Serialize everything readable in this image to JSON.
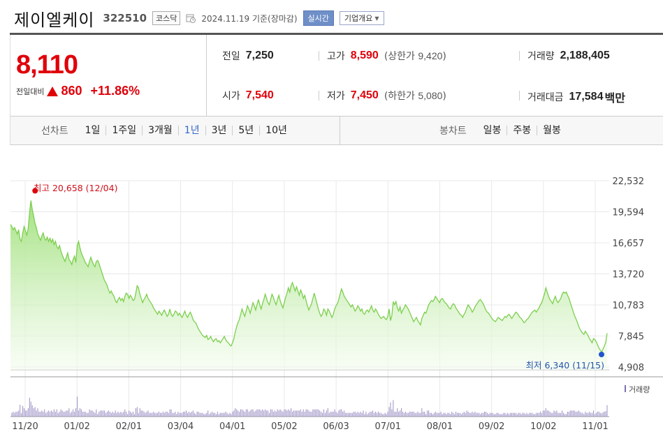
{
  "header": {
    "name": "제이엘케이",
    "code": "322510",
    "market": "코스닥",
    "date": "2024.11.19",
    "basis": "기준(장마감)",
    "realtime_label": "실시간",
    "company_label": "기업개요"
  },
  "price": {
    "current": "8,110",
    "change_label": "전일대비",
    "change": "860",
    "change_pct": "+11.86%"
  },
  "stats": {
    "prev_label": "전일",
    "prev": "7,250",
    "high_label": "고가",
    "high": "8,590",
    "upper_label": "상한가",
    "upper": "9,420",
    "volume_label": "거래량",
    "volume": "2,188,405",
    "open_label": "시가",
    "open": "7,540",
    "low_label": "저가",
    "low": "7,450",
    "lower_label": "하한가",
    "lower": "5,080",
    "amount_label": "거래대금",
    "amount": "17,584",
    "amount_unit": "백만"
  },
  "periods": {
    "line_label": "선차트",
    "line_items": [
      "1일",
      "1주일",
      "3개월",
      "1년",
      "3년",
      "5년",
      "10년"
    ],
    "active": "1년",
    "candle_label": "봉차트",
    "candle_items": [
      "일봉",
      "주봉",
      "월봉"
    ]
  },
  "chart_data": {
    "type": "area",
    "y_ticks": [
      "22,532",
      "19,594",
      "16,657",
      "13,720",
      "10,783",
      "7,845",
      "4,908"
    ],
    "ylim": [
      4908,
      22532
    ],
    "x_ticks": [
      "11/20",
      "01/02",
      "02/01",
      "03/04",
      "04/01",
      "05/02",
      "06/03",
      "07/01",
      "08/01",
      "09/02",
      "10/02",
      "11/01"
    ],
    "high_label": "최고",
    "high_value": "20,658",
    "high_date": "(12/04)",
    "low_label": "최저",
    "low_value": "6,340",
    "low_date": "(11/15)",
    "volume_label": "거래량",
    "series": [
      {
        "values": [
          18400,
          18200,
          17900,
          18100,
          17800,
          17500,
          17900,
          17000,
          16800,
          17600,
          18200,
          17800,
          17400,
          18000,
          19500,
          20658,
          19800,
          19200,
          18500,
          18100,
          17500,
          17200,
          16900,
          17300,
          17600,
          17100,
          16900,
          17200,
          16800,
          17100,
          16700,
          17000,
          16500,
          16800,
          16300,
          16100,
          16400,
          15900,
          15500,
          15200,
          14900,
          15300,
          15700,
          15100,
          14900,
          14600,
          15100,
          15400,
          14800,
          16400,
          16800,
          16200,
          15700,
          15400,
          15100,
          14800,
          14600,
          14400,
          14900,
          15300,
          14900,
          14600,
          14400,
          14900,
          15000,
          14700,
          14300,
          13900,
          13500,
          13100,
          12900,
          12600,
          12200,
          11900,
          12100,
          11800,
          11600,
          11200,
          11000,
          11300,
          11500,
          11200,
          11400,
          11100,
          11600,
          11900,
          11800,
          11400,
          11700,
          11500,
          11200,
          11300,
          11900,
          12600,
          12400,
          11800,
          11400,
          11000,
          11300,
          11500,
          11800,
          11400,
          11200,
          11000,
          10800,
          10500,
          10300,
          10100,
          9900,
          10200,
          10000,
          9800,
          10100,
          10300,
          10000,
          9700,
          9900,
          10400,
          9900,
          9700,
          9900,
          10200,
          10100,
          9800,
          10000,
          9800,
          9600,
          9900,
          10200,
          9800,
          9600,
          9900,
          10100,
          9800,
          9400,
          9200,
          9100,
          8800,
          8500,
          8300,
          8100,
          7900,
          7800,
          7700,
          7900,
          7500,
          7600,
          7800,
          7500,
          7300,
          7500,
          7600,
          7300,
          7400,
          7200,
          7400,
          7600,
          7800,
          7500,
          7300,
          7200,
          7000,
          6900,
          7200,
          7600,
          8200,
          8700,
          9100,
          9400,
          9900,
          10400,
          10000,
          9700,
          10200,
          10700,
          10400,
          10000,
          10500,
          11000,
          10700,
          10300,
          10800,
          11300,
          10800,
          10400,
          10900,
          11300,
          11800,
          11400,
          11000,
          10800,
          11300,
          11800,
          11500,
          11100,
          10800,
          11300,
          11700,
          11200,
          10800,
          10500,
          11000,
          11500,
          11900,
          12400,
          12000,
          12600,
          12900,
          12500,
          12100,
          12500,
          12100,
          11700,
          12200,
          11900,
          11400,
          11700,
          11200,
          10700,
          10300,
          10600,
          10900,
          11400,
          11900,
          11400,
          10900,
          10400,
          10000,
          9700,
          9900,
          10400,
          10200,
          9800,
          10400,
          10200,
          9900,
          9600,
          9900,
          10400,
          10700,
          10900,
          11300,
          11800,
          12300,
          12000,
          11600,
          11400,
          11200,
          11000,
          10800,
          10600,
          10800,
          10500,
          10200,
          10400,
          10700,
          10500,
          10200,
          10400,
          10000,
          9900,
          10200,
          10300,
          10100,
          10400,
          10700,
          10300,
          10100,
          10400,
          10200,
          9900,
          9700,
          9500,
          9600,
          9700,
          9500,
          9400,
          9700,
          10400,
          9300,
          9800,
          11100,
          10800,
          11100,
          10500,
          10200,
          10600,
          10000,
          10300,
          10500,
          10800,
          10600,
          10400,
          10100,
          9800,
          9500,
          9200,
          9400,
          9600,
          9300,
          9100,
          8900,
          9500,
          9800,
          10100,
          10000,
          10400,
          10800,
          11000,
          11200,
          11100,
          11300,
          11600,
          11400,
          11200,
          11000,
          11300,
          11400,
          11200,
          11000,
          10900,
          10700,
          10500,
          10400,
          10700,
          10900,
          10800,
          10500,
          10300,
          10100,
          9900,
          9800,
          9600,
          9900,
          10100,
          10500,
          10800,
          10600,
          10400,
          10100,
          10300,
          10600,
          10800,
          11000,
          11200,
          11300,
          11100,
          10900,
          10600,
          10300,
          10100,
          10000,
          9800,
          9600,
          9400,
          9300,
          9200,
          9400,
          9600,
          9500,
          9400,
          9300,
          9500,
          9700,
          9600,
          9800,
          9900,
          9700,
          9500,
          9700,
          9900,
          10100,
          10000,
          9800,
          9600,
          9500,
          9300,
          9100,
          9200,
          9400,
          9500,
          9700,
          9900,
          10100,
          10200,
          10300,
          10100,
          10300,
          10500,
          10800,
          11000,
          11400,
          11800,
          12400,
          12000,
          11600,
          11300,
          11100,
          10900,
          11300,
          11600,
          11200,
          11000,
          11200,
          11400,
          11800,
          12000,
          11900,
          12000,
          11700,
          11400,
          11000,
          10600,
          10200,
          9800,
          9500,
          9200,
          8800,
          8500,
          8300,
          8100,
          8000,
          8300,
          8100,
          7900,
          7600,
          7400,
          7200,
          7600,
          7500,
          7300,
          7000,
          6700,
          6500,
          6340,
          6600,
          6900,
          7250,
          8110
        ]
      }
    ]
  }
}
